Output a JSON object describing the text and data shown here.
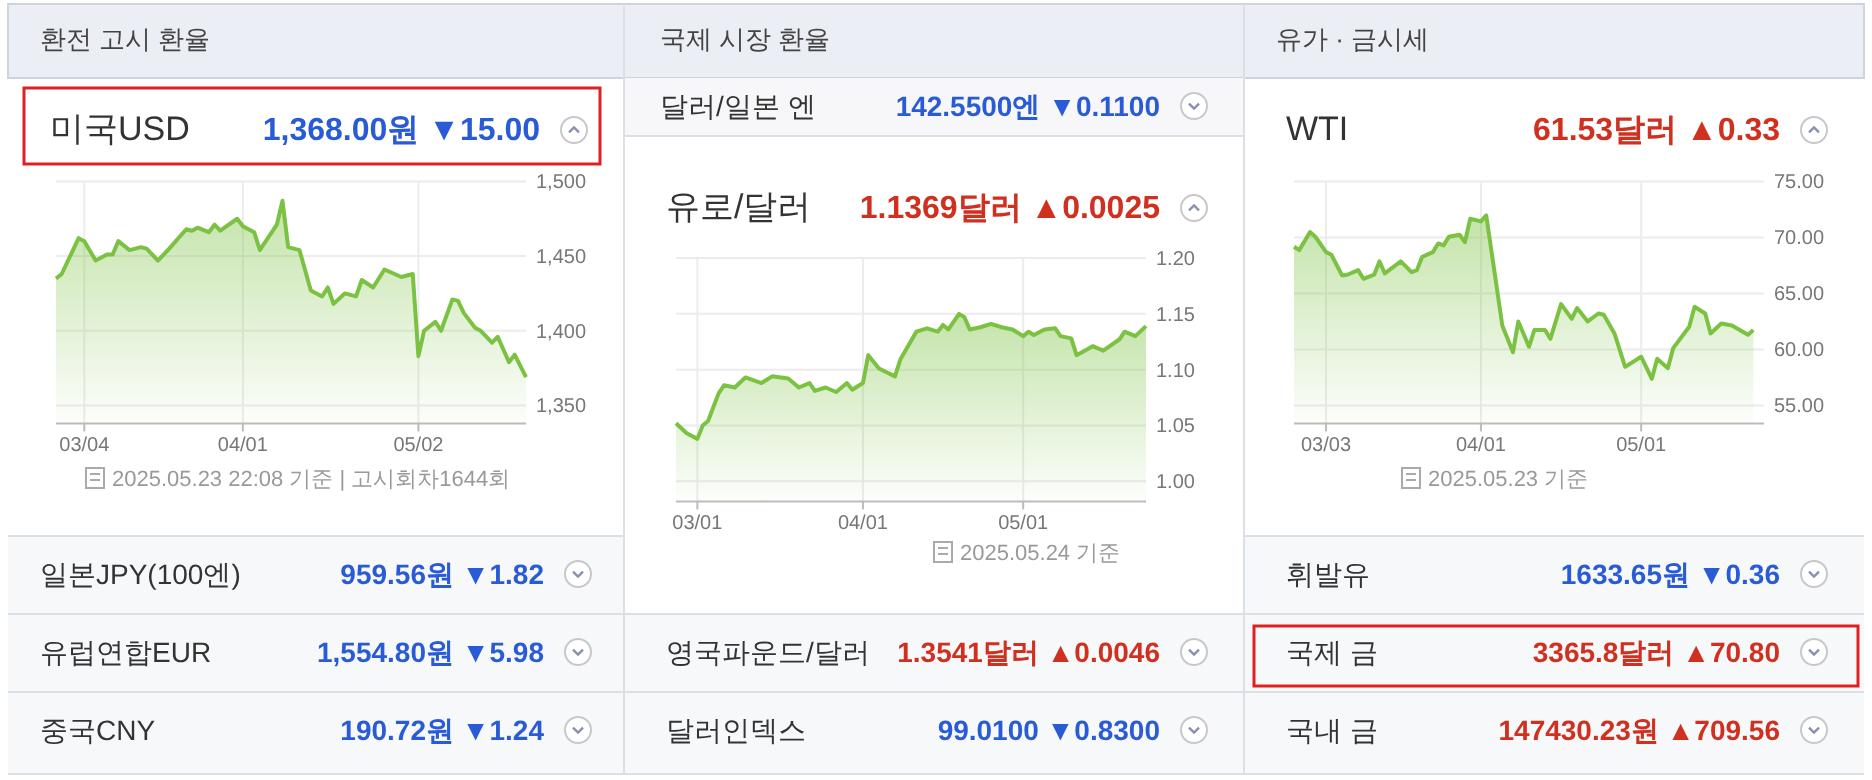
{
  "chart_data": [
    {
      "type": "area",
      "title": "미국USD",
      "subtitle": "1,368.00원 ▼15.00",
      "grid": true,
      "xlim": [
        "--02-27",
        "--05-21"
      ],
      "ylim": [
        1338,
        1500
      ],
      "xticks": [
        {
          "value": "--03-04",
          "label": "03/04"
        },
        {
          "value": "--04-01",
          "label": "04/01"
        },
        {
          "value": "--05-02",
          "label": "05/02"
        }
      ],
      "yticks": [
        {
          "value": 1350,
          "label": "1,350"
        },
        {
          "value": 1400,
          "label": "1,400"
        },
        {
          "value": 1450,
          "label": "1,450"
        },
        {
          "value": 1500,
          "label": "1,500"
        }
      ],
      "x": [
        "--02-27",
        "--02-28",
        "--03-03",
        "--03-04",
        "--03-06",
        "--03-08",
        "--03-09",
        "--03-10",
        "--03-12",
        "--03-14",
        "--03-15",
        "--03-17",
        "--03-19",
        "--03-22",
        "--03-23",
        "--03-24",
        "--03-26",
        "--03-27",
        "--03-28",
        "--03-31",
        "--04-01",
        "--04-03",
        "--04-04",
        "--04-07",
        "--04-08",
        "--04-09",
        "--04-11",
        "--04-13",
        "--04-15",
        "--04-16",
        "--04-17",
        "--04-19",
        "--04-21",
        "--04-22",
        "--04-24",
        "--04-26",
        "--04-29",
        "--05-01",
        "--05-02",
        "--05-03",
        "--05-05",
        "--05-06",
        "--05-08",
        "--05-09",
        "--05-10",
        "--05-12",
        "--05-13",
        "--05-15",
        "--05-16",
        "--05-18",
        "--05-19",
        "--05-21"
      ],
      "series": [
        {
          "color": "#7cc242",
          "values": [
            1435,
            1438,
            1462,
            1460,
            1447,
            1451,
            1451,
            1460,
            1454,
            1456,
            1455,
            1447,
            1455,
            1468,
            1467,
            1469,
            1466,
            1471,
            1467,
            1475,
            1470,
            1466,
            1454,
            1471,
            1487,
            1456,
            1454,
            1427,
            1423,
            1429,
            1418,
            1425,
            1423,
            1434,
            1429,
            1441,
            1436,
            1438,
            1383,
            1400,
            1406,
            1400,
            1421,
            1420,
            1412,
            1402,
            1400,
            1392,
            1396,
            1379,
            1384,
            1369
          ]
        }
      ],
      "annotations": [
        "2025.05.23 22:08 기준 | 고시회차1644회"
      ]
    },
    {
      "type": "area",
      "title": "유로/달러",
      "subtitle": "1.1369달러 ▲0.0025",
      "grid": true,
      "xlim": [
        "--02-25",
        "--05-24"
      ],
      "ylim": [
        0.982,
        1.2
      ],
      "xticks": [
        {
          "value": "--03-01",
          "label": "03/01"
        },
        {
          "value": "--04-01",
          "label": "04/01"
        },
        {
          "value": "--05-01",
          "label": "05/01"
        }
      ],
      "yticks": [
        {
          "value": 1,
          "label": "1.00"
        },
        {
          "value": 1.05,
          "label": "1.05"
        },
        {
          "value": 1.1,
          "label": "1.10"
        },
        {
          "value": 1.15,
          "label": "1.15"
        },
        {
          "value": 1.2,
          "label": "1.20"
        }
      ],
      "x": [
        "--02-25",
        "--02-27",
        "--03-01",
        "--03-02",
        "--03-03",
        "--03-05",
        "--03-06",
        "--03-08",
        "--03-10",
        "--03-13",
        "--03-15",
        "--03-18",
        "--03-20",
        "--03-22",
        "--03-23",
        "--03-25",
        "--03-27",
        "--03-29",
        "--03-30",
        "--04-01",
        "--04-02",
        "--04-04",
        "--04-07",
        "--04-08",
        "--04-11",
        "--04-13",
        "--04-15",
        "--04-16",
        "--04-17",
        "--04-19",
        "--04-20",
        "--04-21",
        "--04-23",
        "--04-25",
        "--04-27",
        "--04-29",
        "--05-01",
        "--05-02",
        "--05-03",
        "--05-05",
        "--05-07",
        "--05-08",
        "--05-10",
        "--05-11",
        "--05-14",
        "--05-16",
        "--05-19",
        "--05-20",
        "--05-22",
        "--05-24"
      ],
      "series": [
        {
          "color": "#7cc242",
          "values": [
            1.052,
            1.043,
            1.038,
            1.05,
            1.054,
            1.079,
            1.086,
            1.084,
            1.093,
            1.088,
            1.094,
            1.092,
            1.084,
            1.088,
            1.081,
            1.084,
            1.08,
            1.088,
            1.082,
            1.088,
            1.113,
            1.101,
            1.094,
            1.109,
            1.134,
            1.137,
            1.134,
            1.14,
            1.136,
            1.15,
            1.147,
            1.136,
            1.138,
            1.141,
            1.138,
            1.136,
            1.13,
            1.134,
            1.131,
            1.136,
            1.137,
            1.13,
            1.128,
            1.113,
            1.121,
            1.117,
            1.127,
            1.134,
            1.13,
            1.139
          ]
        }
      ],
      "annotations": [
        "2025.05.24 기준"
      ]
    },
    {
      "type": "area",
      "title": "WTI",
      "subtitle": "61.53달러 ▲0.33",
      "grid": true,
      "xlim": [
        "--02-25",
        "--05-24"
      ],
      "ylim": [
        53.4,
        75
      ],
      "xticks": [
        {
          "value": "--03-03",
          "label": "03/03"
        },
        {
          "value": "--04-01",
          "label": "04/01"
        },
        {
          "value": "--05-01",
          "label": "05/01"
        }
      ],
      "yticks": [
        {
          "value": 55,
          "label": "55.00"
        },
        {
          "value": 60,
          "label": "60.00"
        },
        {
          "value": 65,
          "label": "65.00"
        },
        {
          "value": 70,
          "label": "70.00"
        },
        {
          "value": 75,
          "label": "75.00"
        }
      ],
      "x": [
        "--02-25",
        "--02-26",
        "--02-28",
        "--03-01",
        "--03-03",
        "--03-04",
        "--03-06",
        "--03-07",
        "--03-09",
        "--03-10",
        "--03-12",
        "--03-13",
        "--03-14",
        "--03-17",
        "--03-19",
        "--03-20",
        "--03-21",
        "--03-23",
        "--03-24",
        "--03-25",
        "--03-26",
        "--03-28",
        "--03-29",
        "--03-30",
        "--04-01",
        "--04-02",
        "--04-05",
        "--04-07",
        "--04-08",
        "--04-10",
        "--04-11",
        "--04-13",
        "--04-14",
        "--04-16",
        "--04-18",
        "--04-19",
        "--04-21",
        "--04-23",
        "--04-24",
        "--04-26",
        "--04-28",
        "--05-01",
        "--05-03",
        "--05-04",
        "--05-06",
        "--05-07",
        "--05-10",
        "--05-11",
        "--05-13",
        "--05-14",
        "--05-16",
        "--05-18",
        "--05-21",
        "--05-22"
      ],
      "series": [
        {
          "color": "#7cc242",
          "values": [
            69.17,
            68.87,
            70.48,
            70.06,
            68.69,
            68.45,
            66.61,
            66.67,
            67.08,
            66.31,
            66.67,
            67.86,
            66.79,
            67.86,
            66.9,
            67.08,
            68.27,
            68.69,
            69.46,
            69.29,
            70.06,
            70.24,
            69.58,
            71.67,
            71.43,
            71.96,
            62.14,
            59.76,
            62.5,
            60.24,
            61.73,
            61.73,
            60.95,
            64.05,
            62.74,
            63.69,
            62.5,
            63.21,
            63.1,
            61.43,
            58.45,
            59.35,
            57.38,
            59.17,
            58.33,
            60.12,
            62.02,
            63.81,
            63.21,
            61.43,
            62.32,
            62.14,
            61.31,
            61.73
          ]
        }
      ],
      "annotations": [
        "2025.05.23 기준"
      ]
    },
    {
      "type": "other",
      "annotations": [
        "환전 고시 환율",
        "국제 시장 환율",
        "유가 · 금시세",
        "달러/일본 엔",
        "142.5500엔 ▼0.1100",
        "일본JPY(100엔)",
        "959.56원 ▼1.82",
        "유럽연합EUR",
        "1,554.80원 ▼5.98",
        "중국CNY",
        "190.72원 ▼1.24",
        "영국파운드/달러",
        "1.3541달러 ▲0.0046",
        "달러인덱스",
        "99.0100 ▼0.8300",
        "휘발유",
        "1633.65원 ▼0.36",
        "국제 금",
        "3365.8달러 ▲70.80",
        "국내 금",
        "147430.23원 ▲709.56"
      ]
    }
  ]
}
